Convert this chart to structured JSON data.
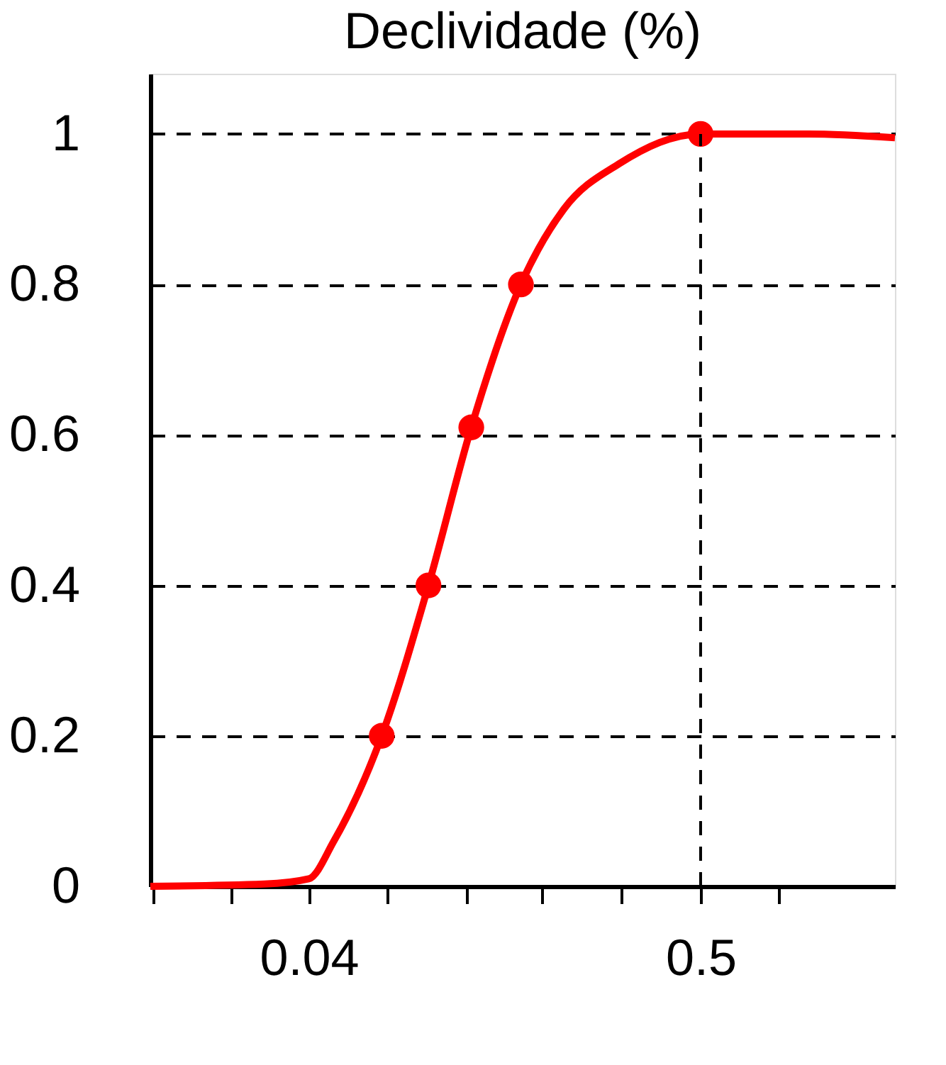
{
  "chart_data": {
    "type": "line",
    "title": "Declividade (%)",
    "log": "x",
    "xlim": [
      0.0144,
      1.75
    ],
    "ylim": [
      0,
      1.08
    ],
    "xticks": [
      {
        "value": 0.0147,
        "label": null
      },
      {
        "value": 0.0243,
        "label": null
      },
      0.04,
      {
        "value": 0.066,
        "label": null
      },
      {
        "value": 0.111,
        "label": null
      },
      {
        "value": 0.18,
        "label": null
      },
      {
        "value": 0.3,
        "label": null
      },
      0.5,
      {
        "value": 0.824,
        "label": null
      }
    ],
    "yticks": [
      0,
      0.2,
      0.4,
      0.6,
      0.8,
      1
    ],
    "grid": "y",
    "ref_lines": [
      {
        "axis": "x",
        "value": 0.5,
        "line_style": "dashed",
        "color": "#000000"
      }
    ],
    "series": [
      {
        "type": "line",
        "color": "#ff0000",
        "marker": "none",
        "x": [
          0.0144,
          0.03,
          0.04,
          0.047,
          0.064,
          0.0865,
          0.114,
          0.157,
          0.207,
          0.295,
          0.5,
          1.0,
          1.75
        ],
        "values": [
          0,
          0.003,
          0.01,
          0.06,
          0.2,
          0.4,
          0.61,
          0.8,
          0.9,
          0.96,
          1,
          1,
          0.995
        ]
      },
      {
        "type": "scatter",
        "color": "#ff0000",
        "marker": "circle",
        "x": [
          0.064,
          0.0865,
          0.114,
          0.157,
          0.5
        ],
        "values": [
          0.2,
          0.4,
          0.61,
          0.8,
          1
        ]
      }
    ]
  }
}
